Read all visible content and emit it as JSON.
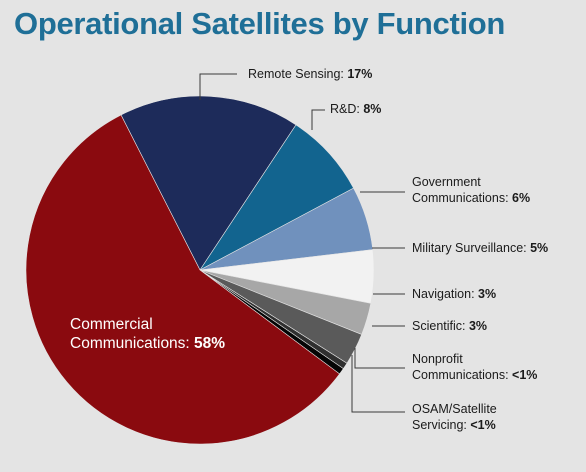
{
  "title": "Operational Satellites by Function",
  "chart_data": {
    "type": "pie",
    "slices": [
      {
        "name": "Commercial Communications",
        "value_text": "58%",
        "value": 58,
        "color": "#8a0a0f"
      },
      {
        "name": "Remote Sensing",
        "value_text": "17%",
        "value": 17,
        "color": "#1d2b5a"
      },
      {
        "name": "R&D",
        "value_text": "8%",
        "value": 8,
        "color": "#12648f"
      },
      {
        "name": "Government Communications",
        "value_text": "6%",
        "value": 6,
        "color": "#7091bd"
      },
      {
        "name": "Military Surveillance",
        "value_text": "5%",
        "value": 5,
        "color": "#f2f2f2"
      },
      {
        "name": "Navigation",
        "value_text": "3%",
        "value": 3,
        "color": "#a7a7a7"
      },
      {
        "name": "Scientific",
        "value_text": "3%",
        "value": 3,
        "color": "#5a5a5a"
      },
      {
        "name": "Nonprofit Communications",
        "value_text": "<1%",
        "value": 0.6,
        "color": "#2f2f2f"
      },
      {
        "name": "OSAM/Satellite Servicing",
        "value_text": "<1%",
        "value": 0.6,
        "color": "#050505"
      }
    ]
  }
}
